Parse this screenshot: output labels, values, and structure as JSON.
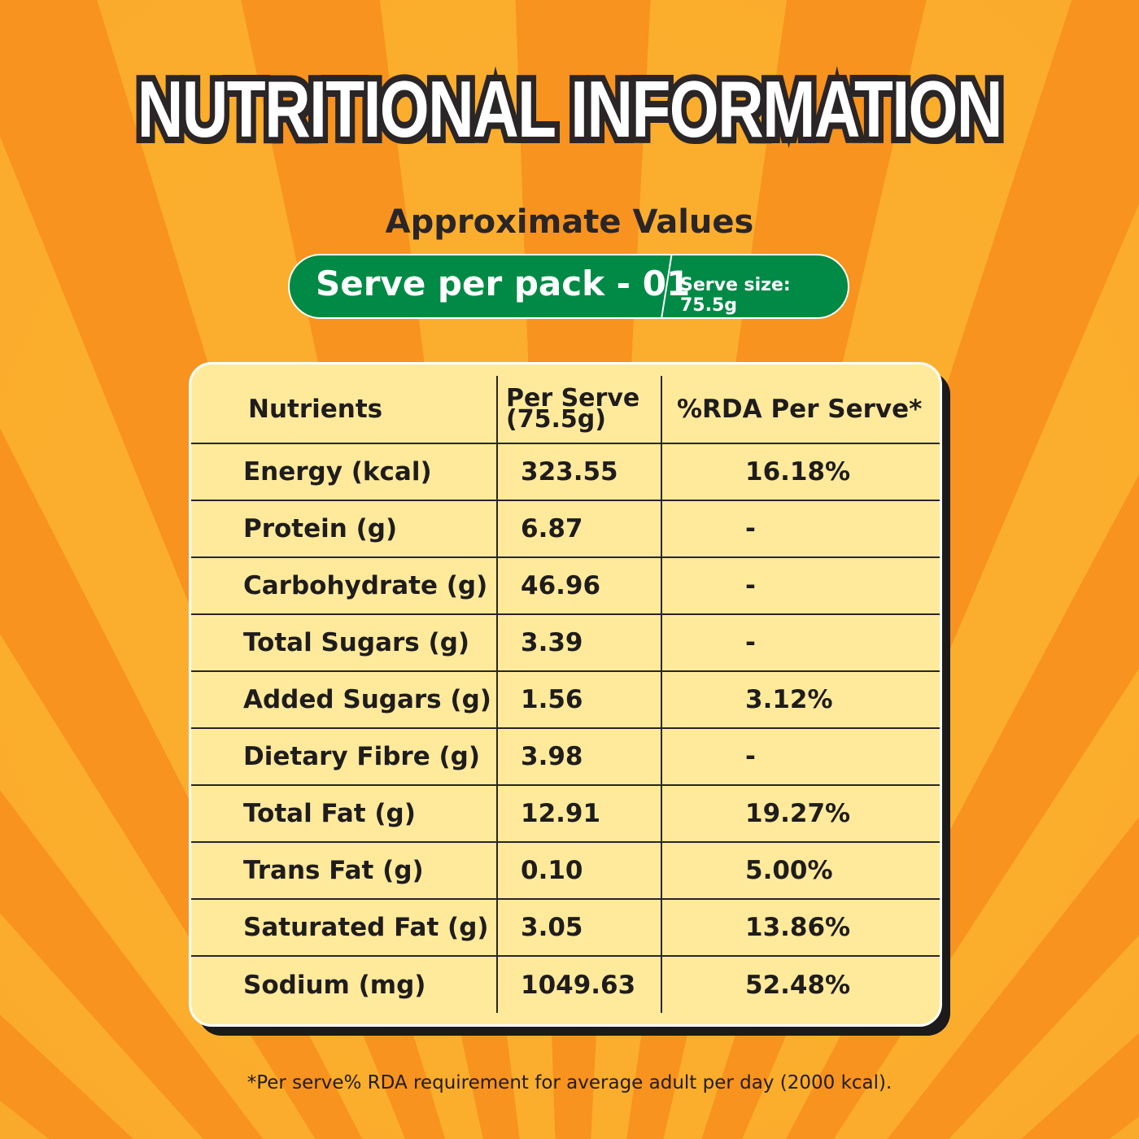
{
  "title": "NUTRITIONAL INFORMATION",
  "subtitle": "Approximate Values",
  "serve_banner": {
    "serves": "Serve per pack - 01",
    "serve_size": "Serve size: 75.5g"
  },
  "colors": {
    "background": "#F7931E",
    "stripe": "#FBAE2D",
    "banner": "#008A45",
    "table": "#FFEA9C"
  },
  "table": {
    "headers": [
      "Nutrients",
      "Per Serve (75.5g)",
      "%RDA Per Serve*"
    ],
    "rows": [
      [
        "Energy (kcal)",
        "323.55",
        "16.18%"
      ],
      [
        "Protein (g)",
        "6.87",
        "-"
      ],
      [
        "Carbohydrate (g)",
        "46.96",
        "-"
      ],
      [
        "Total Sugars (g)",
        "3.39",
        "-"
      ],
      [
        "Added Sugars (g)",
        "1.56",
        "3.12%"
      ],
      [
        "Dietary Fibre (g)",
        "3.98",
        "-"
      ],
      [
        "Total Fat (g)",
        "12.91",
        "19.27%"
      ],
      [
        "Trans Fat (g)",
        "0.10",
        "5.00%"
      ],
      [
        "Saturated Fat (g)",
        "3.05",
        "13.86%"
      ],
      [
        "Sodium (mg)",
        "1049.63",
        "52.48%"
      ]
    ]
  },
  "footnote": "*Per serve% RDA requirement for average adult per day (2000 kcal)."
}
